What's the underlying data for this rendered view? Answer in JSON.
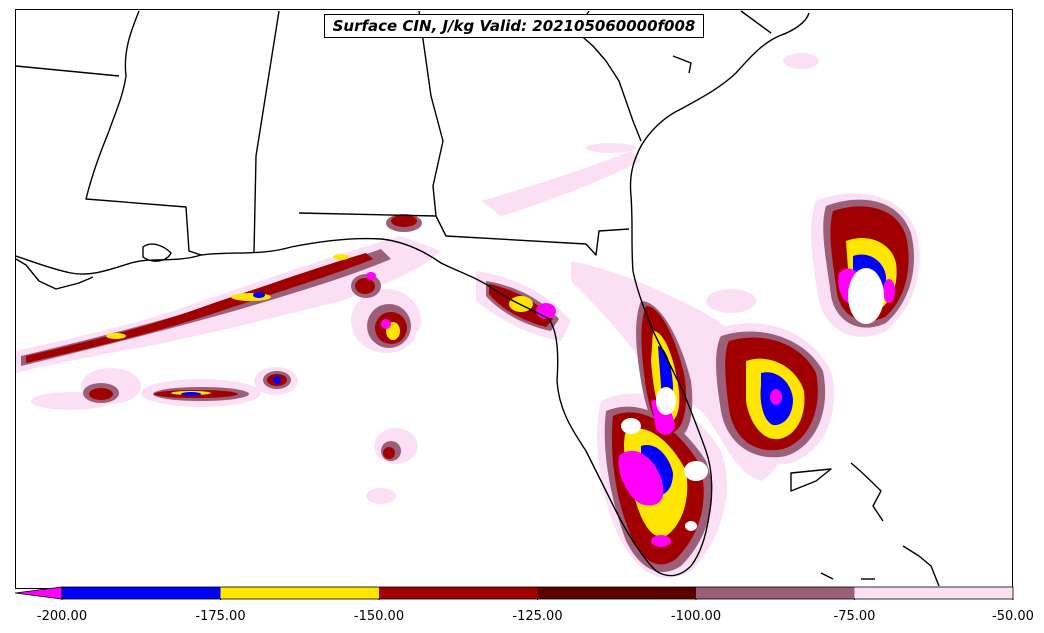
{
  "title": "Surface CIN, J/kg Valid: 202105060000f008",
  "colorbar": {
    "bins": [
      {
        "from": -200,
        "to": -175,
        "color": "#0000ff"
      },
      {
        "from": -175,
        "to": -150,
        "color": "#ffe600"
      },
      {
        "from": -150,
        "to": -125,
        "color": "#a00000"
      },
      {
        "from": -125,
        "to": -100,
        "color": "#5c0000"
      },
      {
        "from": -100,
        "to": -75,
        "color": "#9c5f78"
      },
      {
        "from": -75,
        "to": -50,
        "color": "#fbe0f5"
      }
    ],
    "extend_color": "#ff00ff",
    "ticks": [
      "-200.00",
      "-175.00",
      "-150.00",
      "-125.00",
      "-100.00",
      "-75.00",
      "-50.00"
    ]
  }
}
